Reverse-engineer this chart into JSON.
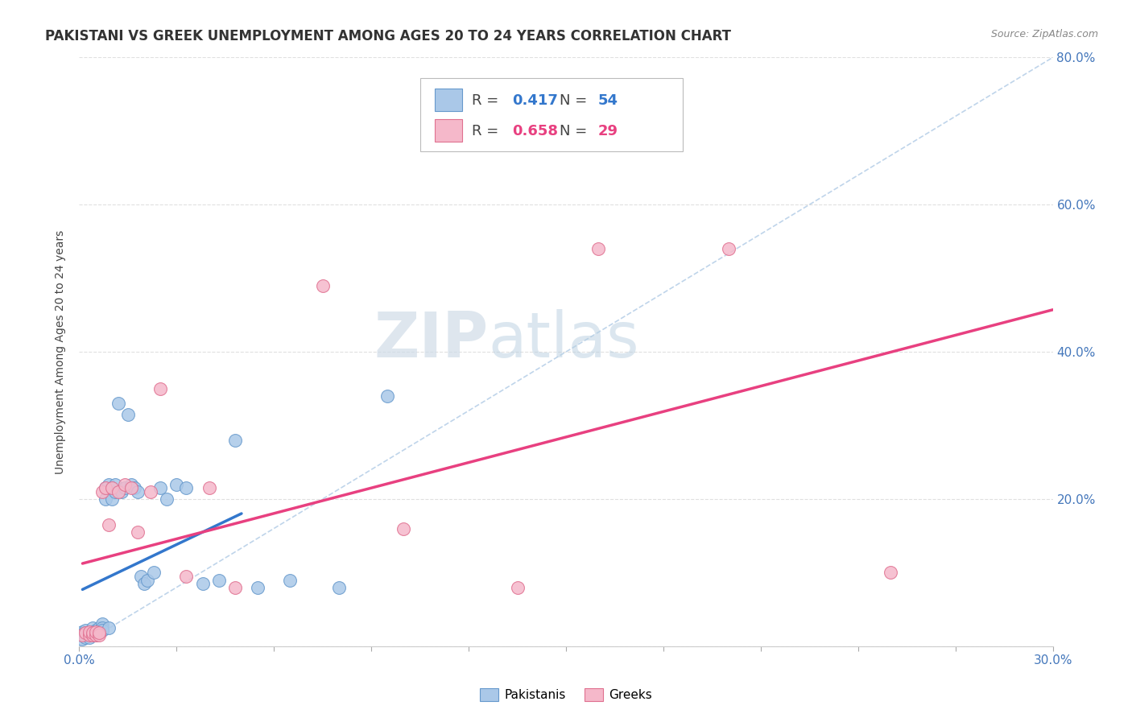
{
  "title": "PAKISTANI VS GREEK UNEMPLOYMENT AMONG AGES 20 TO 24 YEARS CORRELATION CHART",
  "source": "Source: ZipAtlas.com",
  "ylabel": "Unemployment Among Ages 20 to 24 years",
  "xlim": [
    0.0,
    0.3
  ],
  "ylim": [
    0.0,
    0.8
  ],
  "xticks": [
    0.0,
    0.03,
    0.06,
    0.09,
    0.12,
    0.15,
    0.18,
    0.21,
    0.24,
    0.27,
    0.3
  ],
  "yticks": [
    0.0,
    0.2,
    0.4,
    0.6,
    0.8
  ],
  "yticklabels_right": [
    "",
    "20.0%",
    "40.0%",
    "60.0%",
    "80.0%"
  ],
  "pakistani_R": 0.417,
  "pakistani_N": 54,
  "greek_R": 0.658,
  "greek_N": 29,
  "pakistani_color": "#aac8e8",
  "pakistani_edge_color": "#6699cc",
  "greek_color": "#f5b8ca",
  "greek_edge_color": "#e07090",
  "pakistani_trend_color": "#3377cc",
  "greek_trend_color": "#e84080",
  "diagonal_color": "#b8d0e8",
  "background_color": "#ffffff",
  "grid_color": "#e0e0e0",
  "pakistani_x": [
    0.001,
    0.001,
    0.001,
    0.002,
    0.002,
    0.002,
    0.002,
    0.003,
    0.003,
    0.003,
    0.003,
    0.004,
    0.004,
    0.004,
    0.005,
    0.005,
    0.005,
    0.005,
    0.006,
    0.006,
    0.006,
    0.007,
    0.007,
    0.007,
    0.008,
    0.008,
    0.009,
    0.009,
    0.01,
    0.01,
    0.011,
    0.011,
    0.012,
    0.013,
    0.014,
    0.015,
    0.016,
    0.017,
    0.018,
    0.019,
    0.02,
    0.021,
    0.023,
    0.025,
    0.027,
    0.03,
    0.033,
    0.038,
    0.043,
    0.048,
    0.055,
    0.065,
    0.08,
    0.095
  ],
  "pakistani_y": [
    0.02,
    0.015,
    0.01,
    0.022,
    0.018,
    0.015,
    0.012,
    0.02,
    0.018,
    0.015,
    0.012,
    0.025,
    0.02,
    0.015,
    0.022,
    0.02,
    0.018,
    0.015,
    0.025,
    0.02,
    0.018,
    0.03,
    0.025,
    0.022,
    0.2,
    0.215,
    0.22,
    0.025,
    0.215,
    0.2,
    0.21,
    0.22,
    0.33,
    0.21,
    0.215,
    0.315,
    0.22,
    0.215,
    0.21,
    0.095,
    0.085,
    0.09,
    0.1,
    0.215,
    0.2,
    0.22,
    0.215,
    0.085,
    0.09,
    0.28,
    0.08,
    0.09,
    0.08,
    0.34
  ],
  "greek_x": [
    0.001,
    0.002,
    0.003,
    0.003,
    0.004,
    0.004,
    0.005,
    0.005,
    0.006,
    0.006,
    0.007,
    0.008,
    0.009,
    0.01,
    0.012,
    0.014,
    0.016,
    0.018,
    0.022,
    0.025,
    0.033,
    0.04,
    0.048,
    0.075,
    0.1,
    0.135,
    0.16,
    0.2,
    0.25
  ],
  "greek_y": [
    0.015,
    0.018,
    0.015,
    0.02,
    0.015,
    0.018,
    0.015,
    0.02,
    0.015,
    0.018,
    0.21,
    0.215,
    0.165,
    0.215,
    0.21,
    0.22,
    0.215,
    0.155,
    0.21,
    0.35,
    0.095,
    0.215,
    0.08,
    0.49,
    0.16,
    0.08,
    0.54,
    0.54,
    0.1
  ],
  "pak_trend_xrange": [
    0.001,
    0.05
  ],
  "grk_trend_xrange": [
    0.001,
    0.3
  ],
  "watermark_zip": "ZIP",
  "watermark_atlas": "atlas",
  "title_fontsize": 12,
  "label_fontsize": 10,
  "tick_fontsize": 11,
  "legend_fontsize": 13
}
